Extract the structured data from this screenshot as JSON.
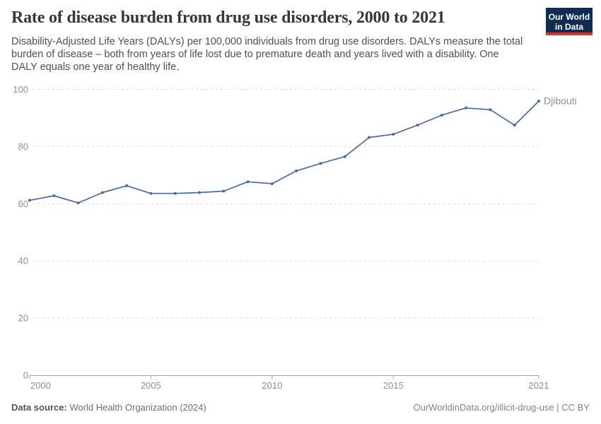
{
  "header": {
    "title": "Rate of disease burden from drug use disorders, 2000 to 2021",
    "subtitle": "Disability-Adjusted Life Years (DALYs) per 100,000 individuals from drug use disorders. DALYs measure the total burden of disease – both from years of life lost due to premature death and years lived with a disability. One DALY equals one year of healthy life.",
    "logo": {
      "line1": "Our World",
      "line2": "in Data",
      "bg_color": "#0F2D52",
      "stripe_color": "#D0362A",
      "text_color": "#FFFFFF"
    }
  },
  "chart_data": {
    "type": "line",
    "title": "Rate of disease burden from drug use disorders, 2000 to 2021",
    "xlabel": "",
    "ylabel": "",
    "xlim": [
      2000,
      2021
    ],
    "ylim": [
      0,
      100
    ],
    "x_ticks": [
      2000,
      2005,
      2010,
      2015,
      2021
    ],
    "y_ticks": [
      0,
      20,
      40,
      60,
      80,
      100
    ],
    "grid": "horizontal-dashed",
    "grid_color": "#DBDBDB",
    "axis_color": "#A5A5A5",
    "tick_label_color": "#8F8F8F",
    "legend_position": "end-of-line-label",
    "series": [
      {
        "name": "Djibouti",
        "color": "#4C6BA0",
        "x": [
          2000,
          2001,
          2002,
          2003,
          2004,
          2005,
          2006,
          2007,
          2008,
          2009,
          2010,
          2011,
          2012,
          2013,
          2014,
          2015,
          2016,
          2017,
          2018,
          2019,
          2020,
          2021
        ],
        "values": [
          61.2,
          62.8,
          60.3,
          63.9,
          66.3,
          63.6,
          63.6,
          63.9,
          64.4,
          67.7,
          67.0,
          71.5,
          74.1,
          76.5,
          83.2,
          84.3,
          87.5,
          91.0,
          93.5,
          92.9,
          87.5,
          95.9
        ]
      }
    ]
  },
  "footer": {
    "source_label": "Data source:",
    "source_value": "World Health Organization (2024)",
    "attribution": "OurWorldinData.org/illicit-drug-use | CC BY"
  }
}
